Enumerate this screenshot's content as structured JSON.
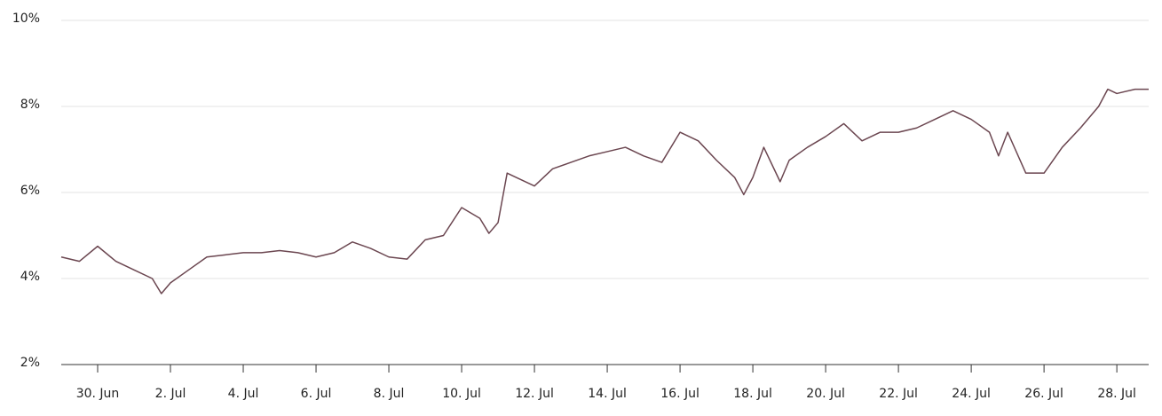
{
  "chart_data": {
    "type": "line",
    "x": [
      -1,
      -0.5,
      0,
      0.5,
      1,
      1.5,
      1.75,
      2,
      2.5,
      3,
      3.5,
      4,
      4.5,
      5,
      5.5,
      6,
      6.5,
      7,
      7.5,
      8,
      8.5,
      9,
      9.5,
      10,
      10.5,
      10.75,
      11,
      11.25,
      11.5,
      12,
      12.5,
      13,
      13.5,
      14,
      14.5,
      15,
      15.5,
      16,
      16.5,
      17,
      17.5,
      17.75,
      18,
      18.3,
      18.75,
      19,
      19.5,
      20,
      20.5,
      21,
      21.5,
      22,
      22.5,
      23,
      23.5,
      24,
      24.5,
      24.75,
      25,
      25.5,
      26,
      26.5,
      27,
      27.5,
      27.75,
      28,
      28.5,
      28.875
    ],
    "series": [
      {
        "color": "#6b4650",
        "values": [
          4.5,
          4.4,
          4.75,
          4.4,
          4.2,
          4.0,
          3.65,
          3.9,
          4.2,
          4.5,
          4.55,
          4.6,
          4.6,
          4.65,
          4.6,
          4.5,
          4.6,
          4.85,
          4.7,
          4.5,
          4.45,
          4.9,
          5.0,
          5.65,
          5.4,
          5.05,
          5.3,
          6.45,
          6.35,
          6.15,
          6.55,
          6.7,
          6.85,
          6.95,
          7.05,
          6.85,
          6.7,
          7.4,
          7.2,
          6.75,
          6.35,
          5.95,
          6.35,
          7.05,
          6.25,
          6.75,
          7.05,
          7.3,
          7.6,
          7.2,
          7.4,
          7.4,
          7.5,
          7.7,
          7.9,
          7.7,
          7.4,
          6.85,
          7.4,
          6.45,
          6.45,
          7.05,
          7.5,
          8.0,
          8.4,
          8.3,
          8.4,
          8.4
        ]
      }
    ],
    "xlim": [
      -1,
      28.875
    ],
    "xticks": [
      {
        "value": 0,
        "label": "30. Jun"
      },
      {
        "value": 2,
        "label": "2. Jul"
      },
      {
        "value": 4,
        "label": "4. Jul"
      },
      {
        "value": 6,
        "label": "6. Jul"
      },
      {
        "value": 8,
        "label": "8. Jul"
      },
      {
        "value": 10,
        "label": "10. Jul"
      },
      {
        "value": 12,
        "label": "12. Jul"
      },
      {
        "value": 14,
        "label": "14. Jul"
      },
      {
        "value": 16,
        "label": "16. Jul"
      },
      {
        "value": 18,
        "label": "18. Jul"
      },
      {
        "value": 20,
        "label": "20. Jul"
      },
      {
        "value": 22,
        "label": "22. Jul"
      },
      {
        "value": 24,
        "label": "24. Jul"
      },
      {
        "value": 26,
        "label": "26. Jul"
      },
      {
        "value": 28,
        "label": "28. Jul"
      }
    ],
    "ylim": [
      2,
      10
    ],
    "yticks": [
      {
        "value": 2,
        "label": "2%"
      },
      {
        "value": 4,
        "label": "4%"
      },
      {
        "value": 6,
        "label": "6%"
      },
      {
        "value": 8,
        "label": "8%"
      },
      {
        "value": 10,
        "label": "10%"
      }
    ],
    "grid": true
  }
}
